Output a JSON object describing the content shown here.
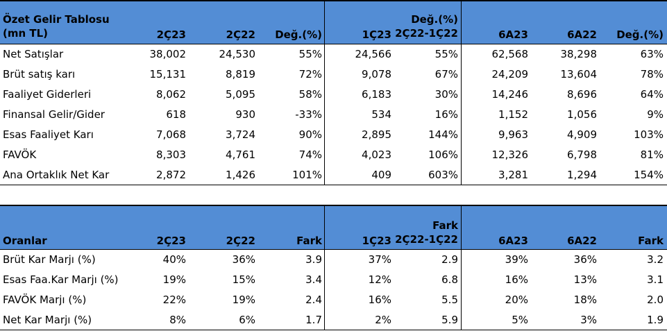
{
  "table1": {
    "headers": {
      "title_line1": "Özet Gelir Tablosu",
      "title_line2": "(mn TL)",
      "c1": "2Ç23",
      "c2": "2Ç22",
      "c3": "Değ.(%)",
      "c4": "1Ç23",
      "c5_line1": "Değ.(%)",
      "c5_line2": "2Ç22-1Ç22",
      "c6": "6A23",
      "c7": "6A22",
      "c8": "Değ.(%)"
    },
    "rows": [
      {
        "label": "Net Satışlar",
        "v": [
          "38,002",
          "24,530",
          "55%",
          "24,566",
          "55%",
          "62,568",
          "38,298",
          "63%"
        ]
      },
      {
        "label": "Brüt satış karı",
        "v": [
          "15,131",
          "8,819",
          "72%",
          "9,078",
          "67%",
          "24,209",
          "13,604",
          "78%"
        ]
      },
      {
        "label": "Faaliyet Giderleri",
        "v": [
          "8,062",
          "5,095",
          "58%",
          "6,183",
          "30%",
          "14,246",
          "8,696",
          "64%"
        ]
      },
      {
        "label": "Finansal Gelir/Gider",
        "v": [
          "618",
          "930",
          "-33%",
          "534",
          "16%",
          "1,152",
          "1,056",
          "9%"
        ]
      },
      {
        "label": "Esas Faaliyet Karı",
        "v": [
          "7,068",
          "3,724",
          "90%",
          "2,895",
          "144%",
          "9,963",
          "4,909",
          "103%"
        ]
      },
      {
        "label": "FAVÖK",
        "v": [
          "8,303",
          "4,761",
          "74%",
          "4,023",
          "106%",
          "12,326",
          "6,798",
          "81%"
        ]
      },
      {
        "label": "Ana Ortaklık Net Kar",
        "v": [
          "2,872",
          "1,426",
          "101%",
          "409",
          "603%",
          "3,281",
          "1,294",
          "154%"
        ]
      }
    ]
  },
  "table2": {
    "headers": {
      "title": "Oranlar",
      "c1": "2Ç23",
      "c2": "2Ç22",
      "c3": "Fark",
      "c4": "1Ç23",
      "c5_line1": "Fark",
      "c5_line2": "2Ç22-1Ç22",
      "c6": "6A23",
      "c7": "6A22",
      "c8": "Fark"
    },
    "rows": [
      {
        "label": "Brüt Kar Marjı (%)",
        "v": [
          "40%",
          "36%",
          "3.9",
          "37%",
          "2.9",
          "39%",
          "36%",
          "3.2"
        ]
      },
      {
        "label": "Esas Faa.Kar Marjı (%)",
        "v": [
          "19%",
          "15%",
          "3.4",
          "12%",
          "6.8",
          "16%",
          "13%",
          "3.1"
        ]
      },
      {
        "label": "FAVÖK Marjı (%)",
        "v": [
          "22%",
          "19%",
          "2.4",
          "16%",
          "5.5",
          "20%",
          "18%",
          "2.0"
        ]
      },
      {
        "label": "Net Kar Marjı (%)",
        "v": [
          "8%",
          "6%",
          "1.7",
          "2%",
          "5.9",
          "5%",
          "3%",
          "1.9"
        ]
      }
    ]
  },
  "colors": {
    "header_bg": "#538dd5",
    "border": "#000000"
  }
}
